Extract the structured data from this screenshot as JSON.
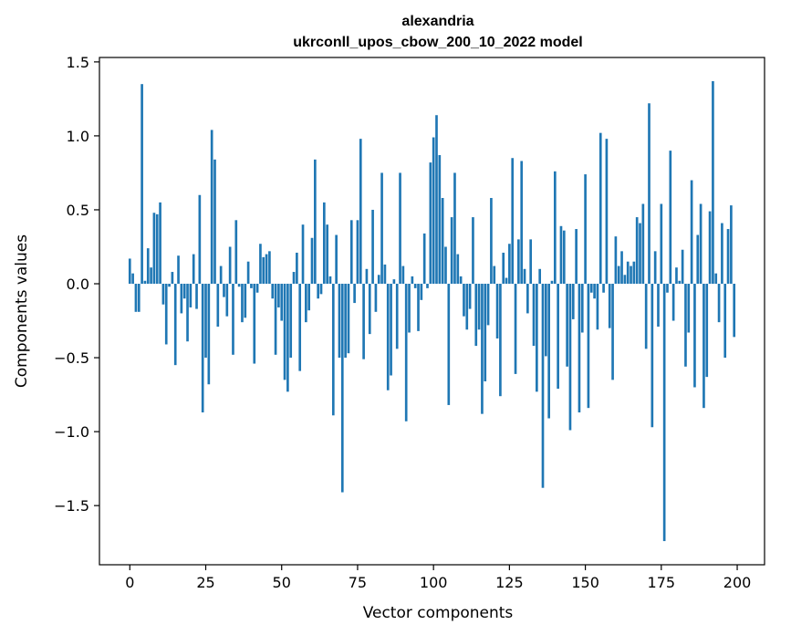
{
  "chart_data": {
    "type": "bar",
    "title": "alexandria",
    "subtitle": "ukrconll_upos_cbow_200_10_2022 model",
    "xlabel": "Vector components",
    "ylabel": "Components values",
    "xlim": [
      -10,
      209
    ],
    "ylim": [
      -1.9,
      1.53
    ],
    "xticks": [
      0,
      25,
      50,
      75,
      100,
      125,
      150,
      175,
      200
    ],
    "xtick_labels": [
      "0",
      "25",
      "50",
      "75",
      "100",
      "125",
      "150",
      "175",
      "200"
    ],
    "yticks": [
      1.5,
      1.0,
      0.5,
      0.0,
      -0.5,
      -1.0,
      -1.5
    ],
    "ytick_labels": [
      "1.5",
      "1.0",
      "0.5",
      "0.0",
      "−0.5",
      "−1.0",
      "−1.5"
    ],
    "grid": false,
    "bar_color": "#1f77b4",
    "x": [
      0,
      1,
      2,
      3,
      4,
      5,
      6,
      7,
      8,
      9,
      10,
      11,
      12,
      13,
      14,
      15,
      16,
      17,
      18,
      19,
      20,
      21,
      22,
      23,
      24,
      25,
      26,
      27,
      28,
      29,
      30,
      31,
      32,
      33,
      34,
      35,
      36,
      37,
      38,
      39,
      40,
      41,
      42,
      43,
      44,
      45,
      46,
      47,
      48,
      49,
      50,
      51,
      52,
      53,
      54,
      55,
      56,
      57,
      58,
      59,
      60,
      61,
      62,
      63,
      64,
      65,
      66,
      67,
      68,
      69,
      70,
      71,
      72,
      73,
      74,
      75,
      76,
      77,
      78,
      79,
      80,
      81,
      82,
      83,
      84,
      85,
      86,
      87,
      88,
      89,
      90,
      91,
      92,
      93,
      94,
      95,
      96,
      97,
      98,
      99,
      100,
      101,
      102,
      103,
      104,
      105,
      106,
      107,
      108,
      109,
      110,
      111,
      112,
      113,
      114,
      115,
      116,
      117,
      118,
      119,
      120,
      121,
      122,
      123,
      124,
      125,
      126,
      127,
      128,
      129,
      130,
      131,
      132,
      133,
      134,
      135,
      136,
      137,
      138,
      139,
      140,
      141,
      142,
      143,
      144,
      145,
      146,
      147,
      148,
      149,
      150,
      151,
      152,
      153,
      154,
      155,
      156,
      157,
      158,
      159,
      160,
      161,
      162,
      163,
      164,
      165,
      166,
      167,
      168,
      169,
      170,
      171,
      172,
      173,
      174,
      175,
      176,
      177,
      178,
      179,
      180,
      181,
      182,
      183,
      184,
      185,
      186,
      187,
      188,
      189,
      190,
      191,
      192,
      193,
      194,
      195,
      196,
      197,
      198,
      199
    ],
    "values": [
      0.17,
      0.07,
      -0.19,
      -0.19,
      1.35,
      0.02,
      0.24,
      0.11,
      0.48,
      0.47,
      0.55,
      -0.14,
      -0.41,
      -0.02,
      0.08,
      -0.55,
      0.19,
      -0.2,
      -0.1,
      -0.39,
      -0.16,
      0.2,
      -0.17,
      0.6,
      -0.87,
      -0.5,
      -0.68,
      1.04,
      0.84,
      -0.29,
      0.12,
      -0.09,
      -0.22,
      0.25,
      -0.48,
      0.43,
      -0.02,
      -0.26,
      -0.23,
      0.15,
      -0.03,
      -0.54,
      -0.06,
      0.27,
      0.18,
      0.2,
      0.22,
      -0.1,
      -0.48,
      -0.16,
      -0.25,
      -0.65,
      -0.73,
      -0.5,
      0.08,
      0.21,
      -0.59,
      0.4,
      -0.26,
      -0.18,
      0.31,
      0.84,
      -0.1,
      -0.07,
      0.55,
      0.4,
      0.05,
      -0.89,
      0.33,
      -0.5,
      -1.41,
      -0.5,
      -0.47,
      0.43,
      -0.13,
      0.43,
      0.98,
      -0.51,
      0.1,
      -0.34,
      0.5,
      -0.19,
      0.06,
      0.75,
      0.13,
      -0.72,
      -0.62,
      0.03,
      -0.44,
      0.75,
      0.12,
      -0.93,
      -0.33,
      0.05,
      -0.03,
      -0.32,
      -0.11,
      0.34,
      -0.03,
      0.82,
      0.99,
      1.14,
      0.87,
      0.58,
      0.25,
      -0.82,
      0.45,
      0.75,
      0.2,
      0.05,
      -0.22,
      -0.31,
      -0.17,
      0.45,
      -0.42,
      -0.31,
      -0.88,
      -0.66,
      -0.28,
      0.58,
      0.12,
      -0.37,
      -0.76,
      0.21,
      0.04,
      0.27,
      0.85,
      -0.61,
      0.3,
      0.83,
      0.1,
      -0.2,
      0.3,
      -0.42,
      -0.73,
      0.1,
      -1.38,
      -0.49,
      -0.91,
      0.02,
      0.76,
      -0.71,
      0.39,
      0.36,
      -0.56,
      -0.99,
      -0.24,
      0.37,
      -0.87,
      -0.33,
      0.74,
      -0.84,
      -0.06,
      -0.1,
      -0.31,
      1.02,
      -0.06,
      0.98,
      -0.3,
      -0.65,
      0.32,
      0.12,
      0.22,
      0.06,
      0.15,
      0.12,
      0.15,
      0.45,
      0.41,
      0.54,
      -0.44,
      1.22,
      -0.97,
      0.22,
      -0.29,
      0.54,
      -1.74,
      -0.06,
      0.9,
      -0.25,
      0.11,
      0.02,
      0.23,
      -0.56,
      -0.33,
      0.7,
      -0.7,
      0.33,
      0.54,
      -0.84,
      -0.63,
      0.49,
      1.37,
      0.07,
      -0.26,
      0.41,
      -0.5,
      0.37,
      0.53,
      -0.36
    ]
  }
}
